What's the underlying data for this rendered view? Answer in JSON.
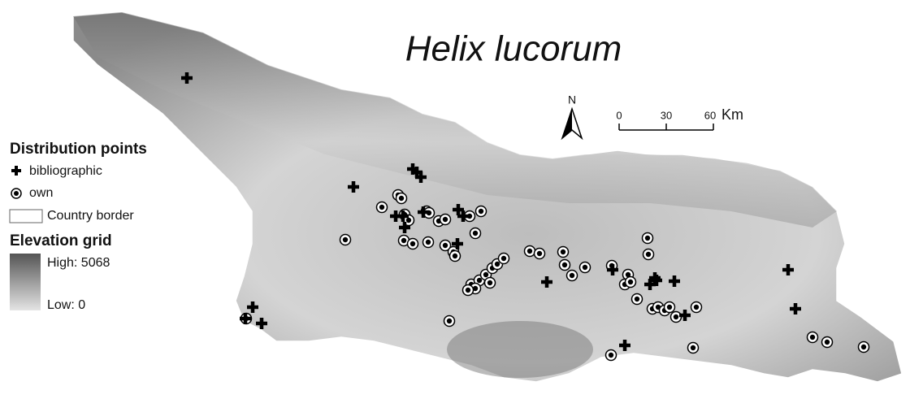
{
  "title": "Helix lucorum",
  "north": "N",
  "scale": {
    "ticks": [
      "0",
      "30",
      "60"
    ],
    "unit": "Km"
  },
  "legend": {
    "points_title": "Distribution points",
    "bibliographic": "bibliographic",
    "own": "own",
    "border": "Country border",
    "elevation_title": "Elevation grid",
    "high": "High: 5068",
    "low": "Low: 0"
  }
}
